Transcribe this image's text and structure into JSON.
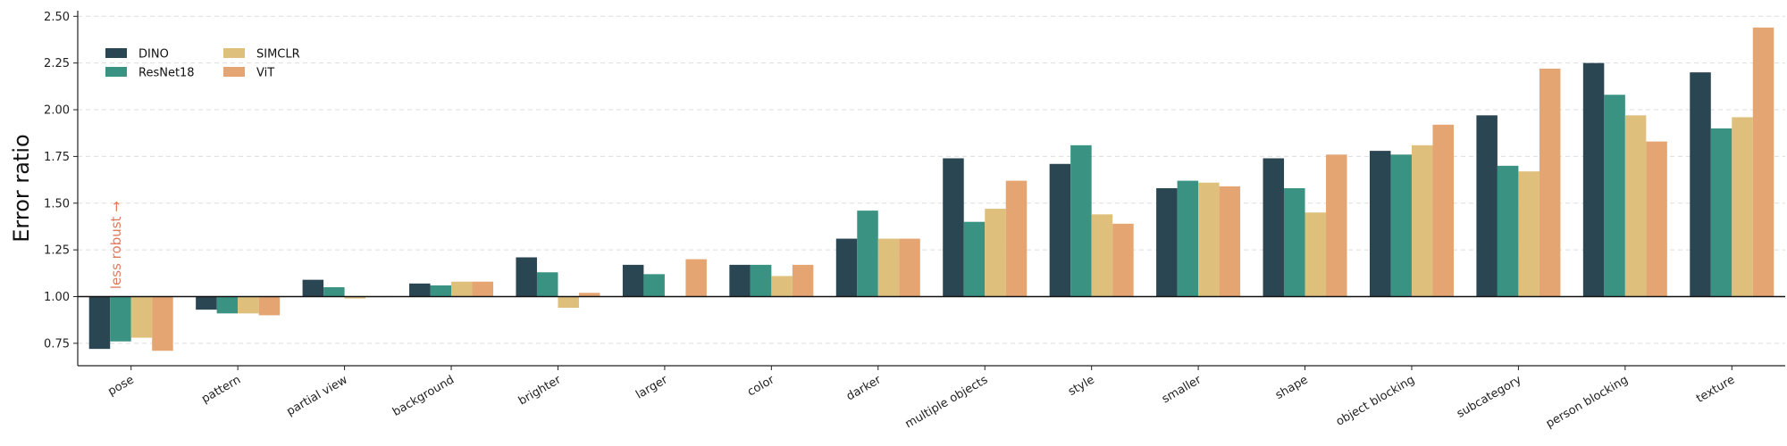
{
  "chart_data": {
    "type": "bar",
    "title": "",
    "xlabel": "",
    "ylabel": "Error ratio",
    "ylim": [
      0.63,
      2.53
    ],
    "yticks": [
      "0.75",
      "1.00",
      "1.25",
      "1.50",
      "1.75",
      "2.00",
      "2.25",
      "2.50"
    ],
    "reference_line": 1.0,
    "grid": "horizontal dashed",
    "legend_position": "top-left",
    "annotation": {
      "text": "less robust →",
      "color": "#e07a5f"
    },
    "categories": [
      "pose",
      "pattern",
      "partial view",
      "background",
      "brighter",
      "larger",
      "color",
      "darker",
      "multiple objects",
      "style",
      "smaller",
      "shape",
      "object blocking",
      "subcategory",
      "person blocking",
      "texture"
    ],
    "series": [
      {
        "name": "DINO",
        "color": "#2a4652",
        "values": [
          0.72,
          0.93,
          1.09,
          1.07,
          1.21,
          1.17,
          1.17,
          1.31,
          1.74,
          1.71,
          1.58,
          1.74,
          1.78,
          1.97,
          2.25,
          2.2
        ]
      },
      {
        "name": "ResNet18",
        "color": "#3a9282",
        "values": [
          0.76,
          0.91,
          1.05,
          1.06,
          1.13,
          1.12,
          1.17,
          1.46,
          1.4,
          1.81,
          1.62,
          1.58,
          1.76,
          1.7,
          2.08,
          1.9
        ]
      },
      {
        "name": "SIMCLR",
        "color": "#dec07c",
        "values": [
          0.78,
          0.91,
          0.99,
          1.08,
          0.94,
          1.0,
          1.11,
          1.31,
          1.47,
          1.44,
          1.61,
          1.45,
          1.81,
          1.67,
          1.97,
          1.96
        ]
      },
      {
        "name": "ViT",
        "color": "#e4a572",
        "values": [
          0.71,
          0.9,
          1.0,
          1.08,
          1.02,
          1.2,
          1.17,
          1.31,
          1.62,
          1.39,
          1.59,
          1.76,
          1.92,
          2.22,
          1.83,
          2.44
        ]
      }
    ]
  }
}
